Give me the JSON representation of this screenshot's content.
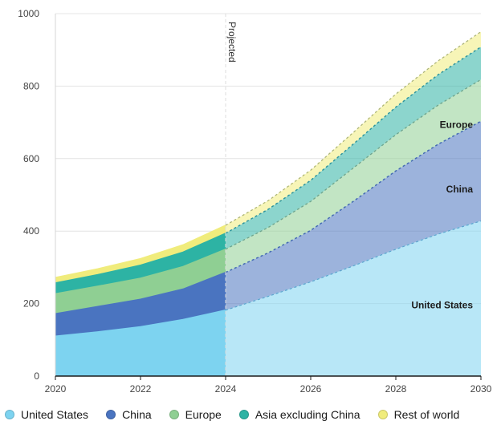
{
  "chart_data": {
    "type": "area",
    "stacked": true,
    "x": [
      2020,
      2021,
      2022,
      2023,
      2024,
      2025,
      2026,
      2027,
      2028,
      2029,
      2030
    ],
    "xticks": [
      2020,
      2022,
      2024,
      2026,
      2028,
      2030
    ],
    "yticks": [
      0,
      200,
      400,
      600,
      800,
      1000
    ],
    "xlim": [
      2020,
      2030
    ],
    "ylim": [
      0,
      1000
    ],
    "grid": "horizontal",
    "projection_start": 2024,
    "projection_label": "Projected",
    "legend_position": "bottom",
    "series": [
      {
        "name": "United States",
        "color": "#7dd3f0",
        "values": [
          110,
          122,
          136,
          156,
          182,
          220,
          260,
          304,
          350,
          392,
          428
        ]
      },
      {
        "name": "China",
        "color": "#4a74c0",
        "values": [
          62,
          70,
          76,
          84,
          104,
          120,
          142,
          178,
          216,
          248,
          275
        ]
      },
      {
        "name": "Europe",
        "color": "#8fcf93",
        "values": [
          55,
          56,
          58,
          62,
          64,
          70,
          80,
          92,
          100,
          108,
          115
        ]
      },
      {
        "name": "Asia excluding China",
        "color": "#2db3a4",
        "values": [
          30,
          32,
          36,
          40,
          44,
          50,
          58,
          66,
          76,
          84,
          90
        ]
      },
      {
        "name": "Rest of world",
        "color": "#f0ec7c",
        "values": [
          15,
          16,
          18,
          20,
          22,
          24,
          28,
          32,
          36,
          38,
          42
        ]
      }
    ],
    "inline_labels": [
      {
        "text": "United States",
        "series": "United States"
      },
      {
        "text": "China",
        "series": "China"
      },
      {
        "text": "Europe",
        "series": "Europe"
      }
    ]
  }
}
